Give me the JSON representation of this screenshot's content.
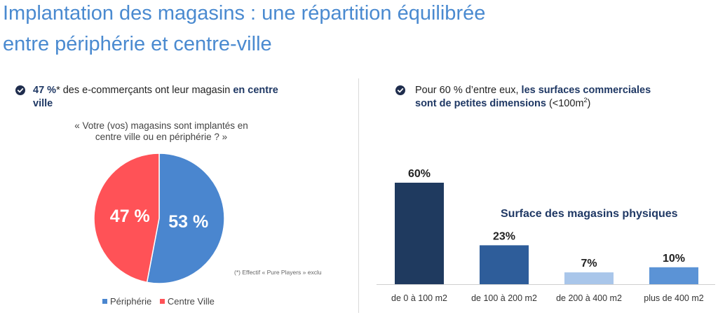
{
  "title": {
    "line1": "Implantation des magasins : une répartition équilibrée",
    "line2": "entre périphérie et centre-ville"
  },
  "left_bullet": {
    "value": "47 %",
    "text_mid": "* des e-commerçants ont leur magasin ",
    "bold": "en centre",
    "bold_line2": "ville"
  },
  "question": {
    "line1": "« Votre (vos) magasins sont implantés en",
    "line2": "centre ville ou en périphérie ? »"
  },
  "footnote": "(*) Effectif « Pure Players » exclu",
  "right_bullet": {
    "text": "Pour 60 % d’entre eux, ",
    "bold_line1": "les surfaces commerciales",
    "bold_line2": "sont de petites dimensions",
    "tail": " (<100m",
    "sup": "2",
    "tail_end": ")"
  },
  "colors": {
    "title": "#4a8ad0",
    "peripherie": "#4a86cf",
    "centre_ville": "#ff5257",
    "bar_1": "#1f3a5f",
    "bar_2": "#2e5d9a",
    "bar_3": "#a9c6ea",
    "bar_4": "#5b93d6"
  },
  "chart_data": [
    {
      "type": "pie",
      "slices": [
        {
          "name": "Périphérie",
          "value": 53,
          "label": "53 %",
          "color": "#4a86cf"
        },
        {
          "name": "Centre Ville",
          "value": 47,
          "label": "47 %",
          "color": "#ff5257"
        }
      ],
      "legend": [
        "Périphérie",
        "Centre Ville"
      ],
      "legend_position": "bottom"
    },
    {
      "type": "bar",
      "title": "Surface des magasins physiques",
      "categories": [
        "de 0 à 100 m2",
        "de 100 à 200 m2",
        "de 200 à 400 m2",
        "plus de 400 m2"
      ],
      "values": [
        60,
        23,
        7,
        10
      ],
      "labels": [
        "60%",
        "23%",
        "7%",
        "10%"
      ],
      "colors": [
        "#1f3a5f",
        "#2e5d9a",
        "#a9c6ea",
        "#5b93d6"
      ],
      "ylim": [
        0,
        60
      ],
      "grid": false
    }
  ]
}
